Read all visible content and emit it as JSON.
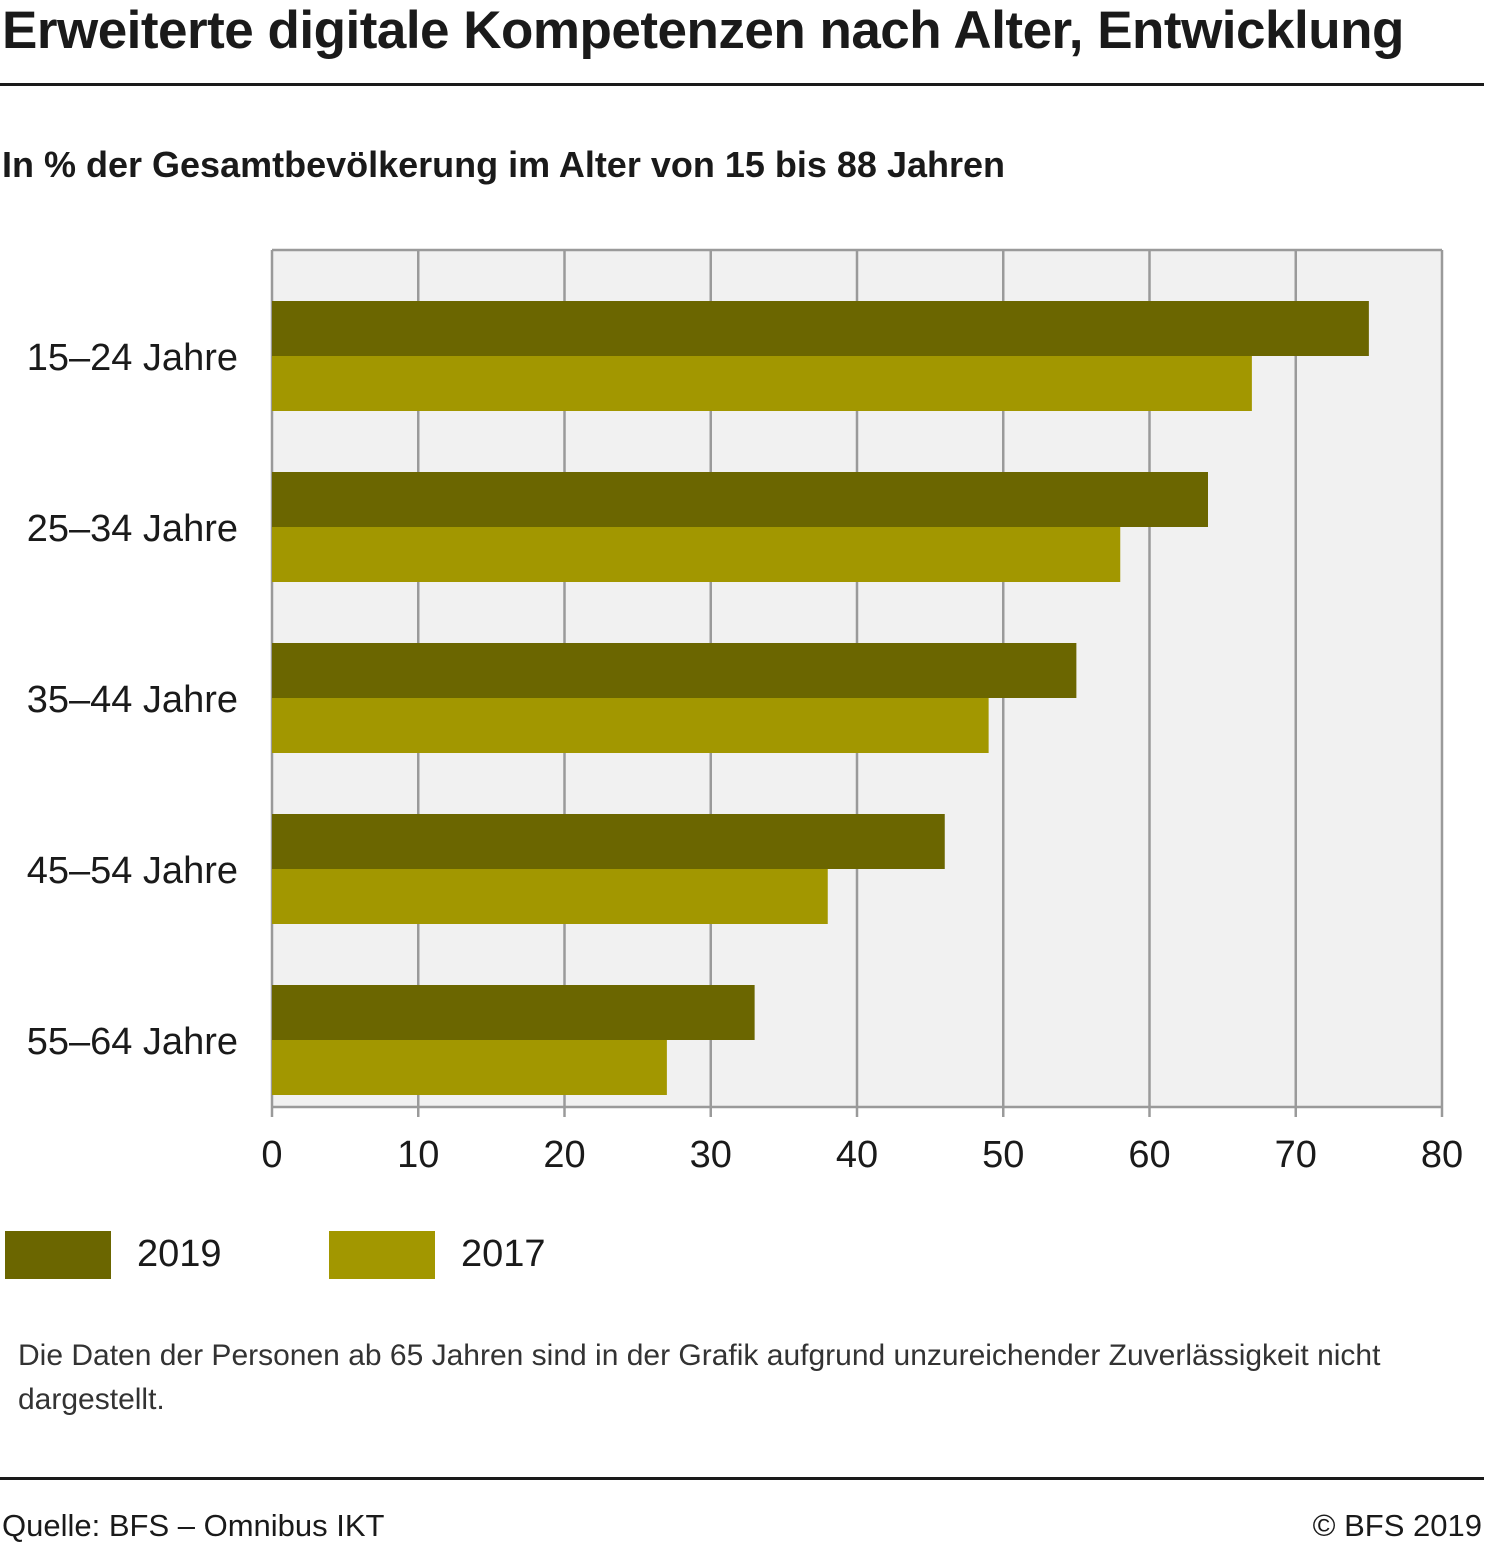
{
  "title": "Erweiterte digitale Kompetenzen nach Alter, Entwicklung",
  "subtitle": "In % der Gesamtbevölkerung im Alter von 15 bis 88 Jahren",
  "note": "Die Daten der Personen ab 65 Jahren sind in der Grafik aufgrund unzureichender Zuverlässigkeit nicht dargestellt.",
  "source": "Quelle: BFS – Omnibus IKT",
  "copyright": "© BFS 2019",
  "colors": {
    "series_2019": "#6b6600",
    "series_2017": "#a29700",
    "plot_background": "#f1f1f1",
    "grid": "#9a9a9a"
  },
  "chart_data": {
    "type": "bar",
    "orientation": "horizontal",
    "categories": [
      "15–24 Jahre",
      "25–34 Jahre",
      "35–44 Jahre",
      "45–54 Jahre",
      "55–64 Jahre"
    ],
    "series": [
      {
        "name": "2019",
        "values": [
          75,
          64,
          55,
          46,
          33
        ]
      },
      {
        "name": "2017",
        "values": [
          67,
          58,
          49,
          38,
          27
        ]
      }
    ],
    "xlim": [
      0,
      80
    ],
    "xticks": [
      "0",
      "10",
      "20",
      "30",
      "40",
      "50",
      "60",
      "70",
      "80"
    ],
    "grid": true,
    "legend": "bottom-left"
  }
}
